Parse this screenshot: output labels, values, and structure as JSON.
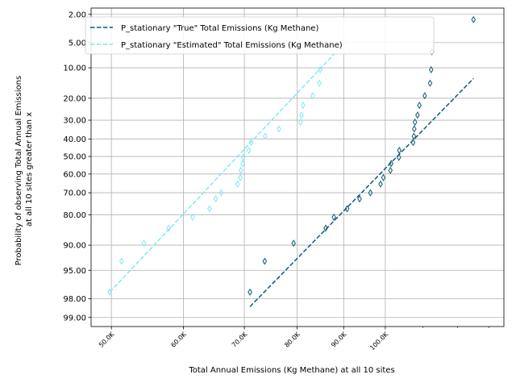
{
  "chart_data": {
    "type": "scatter",
    "title": "",
    "xlabel": "Total Annual Emissions (Kg Methane) at all 10 sites",
    "ylabel_lines": [
      "Probability of observing Total Annual Emissions",
      "at all 10 sites greater than x"
    ],
    "x_scale": "log",
    "y_scale": "normal-probability (percent exceedance)",
    "xlim": [
      47500,
      135000
    ],
    "ylim_percent": [
      99.3,
      1.6
    ],
    "grid": true,
    "legend_position": "top-left",
    "x_ticks": [
      {
        "value": 50000,
        "label": "50.0K"
      },
      {
        "value": 60000,
        "label": "60.0K"
      },
      {
        "value": 70000,
        "label": "70.0K"
      },
      {
        "value": 80000,
        "label": "80.0K"
      },
      {
        "value": 90000,
        "label": "90.0K"
      },
      {
        "value": 100000,
        "label": "100.0K"
      }
    ],
    "y_ticks": [
      {
        "value": 2,
        "label": "2.00"
      },
      {
        "value": 5,
        "label": "5.00"
      },
      {
        "value": 10,
        "label": "10.00"
      },
      {
        "value": 20,
        "label": "20.00"
      },
      {
        "value": 30,
        "label": "30.00"
      },
      {
        "value": 40,
        "label": "40.00"
      },
      {
        "value": 50,
        "label": "50.00"
      },
      {
        "value": 60,
        "label": "60.00"
      },
      {
        "value": 70,
        "label": "70.00"
      },
      {
        "value": 80,
        "label": "80.00"
      },
      {
        "value": 90,
        "label": "90.00"
      },
      {
        "value": 95,
        "label": "95.00"
      },
      {
        "value": 98,
        "label": "98.00"
      },
      {
        "value": 99,
        "label": "99.00"
      }
    ],
    "series": [
      {
        "name": "P_stationary \"True\" Total Emissions (Kg Methane)",
        "color": "#0f5a73",
        "fit_line": [
          [
            71000,
            98.5
          ],
          [
            125000,
            13
          ]
        ],
        "points": [
          [
            71000,
            97.5
          ],
          [
            73700,
            93.5
          ],
          [
            79300,
            89.5
          ],
          [
            86000,
            85
          ],
          [
            87800,
            81
          ],
          [
            90800,
            77.5
          ],
          [
            93700,
            73
          ],
          [
            96300,
            70
          ],
          [
            98800,
            65.5
          ],
          [
            99500,
            62
          ],
          [
            101300,
            58
          ],
          [
            101500,
            54
          ],
          [
            103500,
            50.5
          ],
          [
            103600,
            46.5
          ],
          [
            107300,
            42
          ],
          [
            107500,
            38.5
          ],
          [
            107600,
            34.5
          ],
          [
            107800,
            31
          ],
          [
            108500,
            27.5
          ],
          [
            109000,
            23
          ],
          [
            110500,
            19
          ],
          [
            112000,
            14.5
          ],
          [
            112300,
            10.5
          ],
          [
            112500,
            6.5
          ],
          [
            125000,
            2.4
          ]
        ]
      },
      {
        "name": "P_stationary \"Estimated\" Total Emissions (Kg Methane)",
        "color": "#7feaf2",
        "fit_line": [
          [
            49800,
            97.5
          ],
          [
            91000,
            4.5
          ]
        ],
        "points": [
          [
            49800,
            97.5
          ],
          [
            51300,
            93.5
          ],
          [
            54300,
            89.5
          ],
          [
            57800,
            85
          ],
          [
            61400,
            81
          ],
          [
            64100,
            77.5
          ],
          [
            65100,
            73
          ],
          [
            66000,
            70
          ],
          [
            68800,
            65.5
          ],
          [
            69300,
            62
          ],
          [
            69400,
            58
          ],
          [
            69700,
            54
          ],
          [
            69800,
            50.5
          ],
          [
            70800,
            46.5
          ],
          [
            71200,
            42
          ],
          [
            73800,
            38.5
          ],
          [
            76400,
            34.5
          ],
          [
            80700,
            31
          ],
          [
            80900,
            27.5
          ],
          [
            81200,
            23
          ],
          [
            83200,
            19
          ],
          [
            84600,
            14.5
          ],
          [
            84800,
            10.5
          ]
        ]
      }
    ]
  }
}
